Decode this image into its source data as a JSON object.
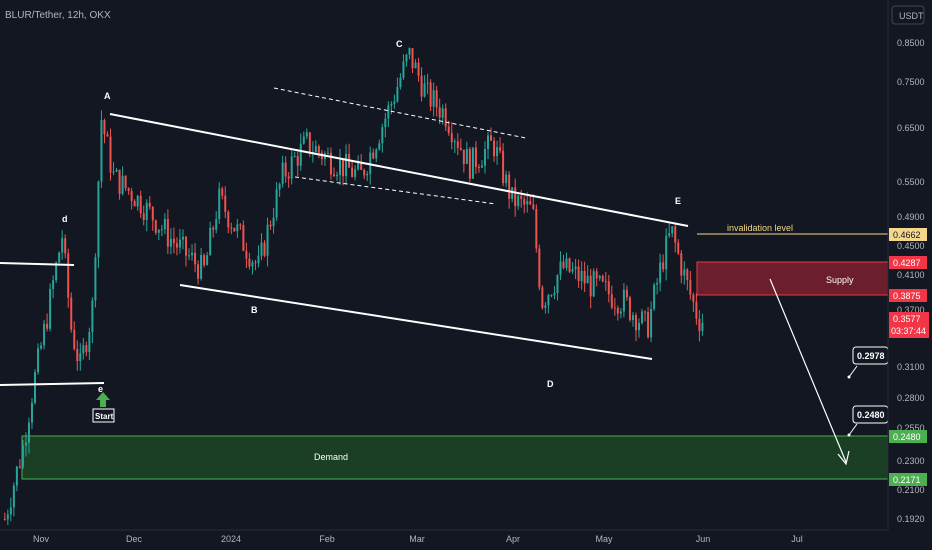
{
  "header": {
    "symbol_title": "BLUR/Tether, 12h, OKX"
  },
  "currency_button": {
    "label": "USDT"
  },
  "chart_data": {
    "type": "candlestick",
    "title": "BLUR/Tether, 12h, OKX",
    "y_scale": "log",
    "ylim": [
      0.185,
      0.93
    ],
    "y_ticks": [
      0.85,
      0.75,
      0.65,
      0.55,
      0.49,
      0.45,
      0.41,
      0.37,
      0.31,
      0.28,
      0.255,
      0.23,
      0.21,
      0.192
    ],
    "x_tick_labels": [
      "Nov",
      "Dec",
      "2024",
      "Feb",
      "Mar",
      "Apr",
      "May",
      "Jun",
      "Jul"
    ],
    "price_path": [
      [
        "Oct 20",
        0.192
      ],
      [
        "Oct 26",
        0.24
      ],
      [
        "Oct 30",
        0.3
      ],
      [
        "Nov 4",
        0.38
      ],
      [
        "Nov 8",
        0.465
      ],
      [
        "Nov 11",
        0.35
      ],
      [
        "Nov 14",
        0.31
      ],
      [
        "Nov 18",
        0.37
      ],
      [
        "Nov 21",
        0.67
      ],
      [
        "Nov 25",
        0.56
      ],
      [
        "Dec 3",
        0.52
      ],
      [
        "Dec 14",
        0.46
      ],
      [
        "Dec 25",
        0.415
      ],
      [
        "Dec 30",
        0.52
      ],
      [
        "Jan 5",
        0.47
      ],
      [
        "Jan 12",
        0.42
      ],
      [
        "Jan 20",
        0.56
      ],
      [
        "Jan 28",
        0.62
      ],
      [
        "Feb 5",
        0.59
      ],
      [
        "Feb 15",
        0.56
      ],
      [
        "Feb 25",
        0.7
      ],
      [
        "Mar 2",
        0.82
      ],
      [
        "Mar 8",
        0.72
      ],
      [
        "Mar 14",
        0.68
      ],
      [
        "Mar 22",
        0.58
      ],
      [
        "Mar 30",
        0.62
      ],
      [
        "Apr 5",
        0.52
      ],
      [
        "Apr 12",
        0.5
      ],
      [
        "Apr 15",
        0.38
      ],
      [
        "Apr 22",
        0.42
      ],
      [
        "May 1",
        0.4
      ],
      [
        "May 12",
        0.38
      ],
      [
        "May 20",
        0.35
      ],
      [
        "May 25",
        0.43
      ],
      [
        "May 28",
        0.47
      ],
      [
        "Jun 2",
        0.4
      ],
      [
        "Jun 6",
        0.36
      ],
      [
        "Jun 8",
        0.3577
      ]
    ],
    "current_price": 0.3577,
    "countdown": "03:37:44",
    "zones": [
      {
        "name": "Supply",
        "from": 0.3875,
        "to": 0.4287
      },
      {
        "name": "Demand",
        "from": 0.2171,
        "to": 0.248
      }
    ],
    "invalidation": {
      "label": "invalidation level",
      "value": 0.4662
    },
    "targets": [
      0.2978,
      0.248
    ],
    "wave_labels": [
      "A",
      "B",
      "C",
      "D",
      "E",
      "d",
      "e"
    ],
    "start_label": "Start",
    "price_tags": [
      "0.4662",
      "0.4287",
      "0.3875",
      "0.3577",
      "0.2480",
      "0.2171"
    ],
    "callouts": [
      "0.2978",
      "0.2480"
    ]
  },
  "colors": {
    "background": "#131722",
    "up": "#26a69a",
    "down": "#ef5350",
    "supply": "#f23645",
    "demand": "#4caf50",
    "invalidation": "#f5d68a",
    "annotation": "#ffffff"
  }
}
